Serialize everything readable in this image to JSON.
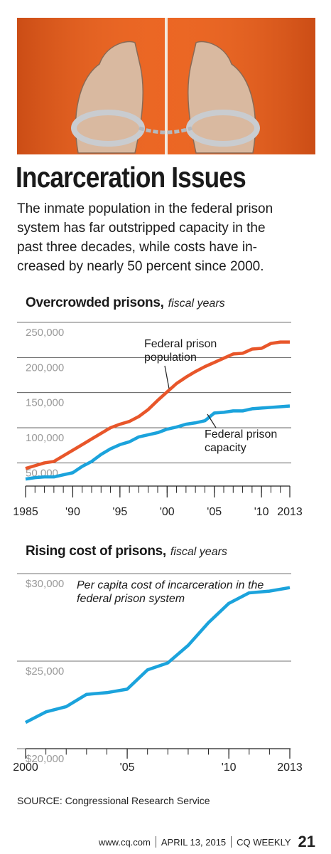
{
  "headline": "Incarceration Issues",
  "intro": [
    "The inmate population in the federal prison",
    "system has far outstripped capacity in the",
    "past three decades, while costs have in-",
    "creased by nearly 50 percent since 2000."
  ],
  "chart_data": [
    {
      "type": "line",
      "title": "Overcrowded prisons,",
      "subtitle": "fiscal years",
      "x": [
        1985,
        1986,
        1987,
        1988,
        1989,
        1990,
        1991,
        1992,
        1993,
        1994,
        1995,
        1996,
        1997,
        1998,
        1999,
        2000,
        2001,
        2002,
        2003,
        2004,
        2005,
        2006,
        2007,
        2008,
        2009,
        2010,
        2011,
        2012,
        2013
      ],
      "series": [
        {
          "name": "Federal prison population",
          "color": "#e8562a",
          "values": [
            42000,
            46000,
            50000,
            52000,
            60000,
            68000,
            76000,
            84000,
            92000,
            100000,
            105000,
            109000,
            116000,
            126000,
            139000,
            151000,
            163000,
            172000,
            180000,
            187000,
            193000,
            199000,
            205000,
            206000,
            212000,
            213000,
            220000,
            222000,
            222000
          ]
        },
        {
          "name": "Federal prison capacity",
          "color": "#1ba3dc",
          "values": [
            27000,
            29000,
            30000,
            30000,
            33000,
            36000,
            45000,
            52000,
            62000,
            70000,
            76000,
            80000,
            87000,
            90000,
            93000,
            98000,
            101000,
            105000,
            107000,
            110000,
            121000,
            122000,
            124000,
            124000,
            127000,
            128000,
            129000,
            130000,
            131000
          ]
        }
      ],
      "xlim": [
        1985,
        2013
      ],
      "ylim": [
        17000,
        250000
      ],
      "xticks": [
        1985,
        {
          "value": 1990,
          "label": "'90"
        },
        {
          "value": 1995,
          "label": "'95"
        },
        {
          "value": 2000,
          "label": "'00"
        },
        {
          "value": 2005,
          "label": "'05"
        },
        {
          "value": 2010,
          "label": "'10"
        },
        2013
      ],
      "yticks": [
        {
          "value": 50000,
          "label": "50,000"
        },
        {
          "value": 100000,
          "label": "100,000"
        },
        {
          "value": 150000,
          "label": "150,000"
        },
        {
          "value": 200000,
          "label": "200,000"
        },
        {
          "value": 250000,
          "label": "250,000"
        }
      ],
      "grid": true
    },
    {
      "type": "line",
      "title": "Rising cost of prisons,",
      "subtitle": "fiscal years",
      "x": [
        2000,
        2001,
        2002,
        2003,
        2004,
        2005,
        2006,
        2007,
        2008,
        2009,
        2010,
        2011,
        2012,
        2013
      ],
      "series": [
        {
          "name": "Per capita cost of incarceration in the federal prison system",
          "color": "#1ba3dc",
          "values": [
            21500,
            22100,
            22400,
            23100,
            23200,
            23400,
            24500,
            24900,
            25900,
            27200,
            28300,
            28900,
            29000,
            29200
          ]
        }
      ],
      "xlim": [
        2000,
        2013
      ],
      "ylim": [
        20000,
        30000
      ],
      "xticks": [
        2000,
        {
          "value": 2005,
          "label": "'05"
        },
        {
          "value": 2010,
          "label": "'10"
        },
        2013
      ],
      "yticks": [
        {
          "value": 20000,
          "label": "$20,000"
        },
        {
          "value": 25000,
          "label": "$25,000"
        },
        {
          "value": 30000,
          "label": "$30,000"
        }
      ],
      "grid": true
    }
  ],
  "source": "SOURCE: Congressional Research Service",
  "footer": {
    "site": "www.cq.com",
    "date": "APRIL 13, 2015",
    "publication": "CQ WEEKLY",
    "page": "21"
  }
}
